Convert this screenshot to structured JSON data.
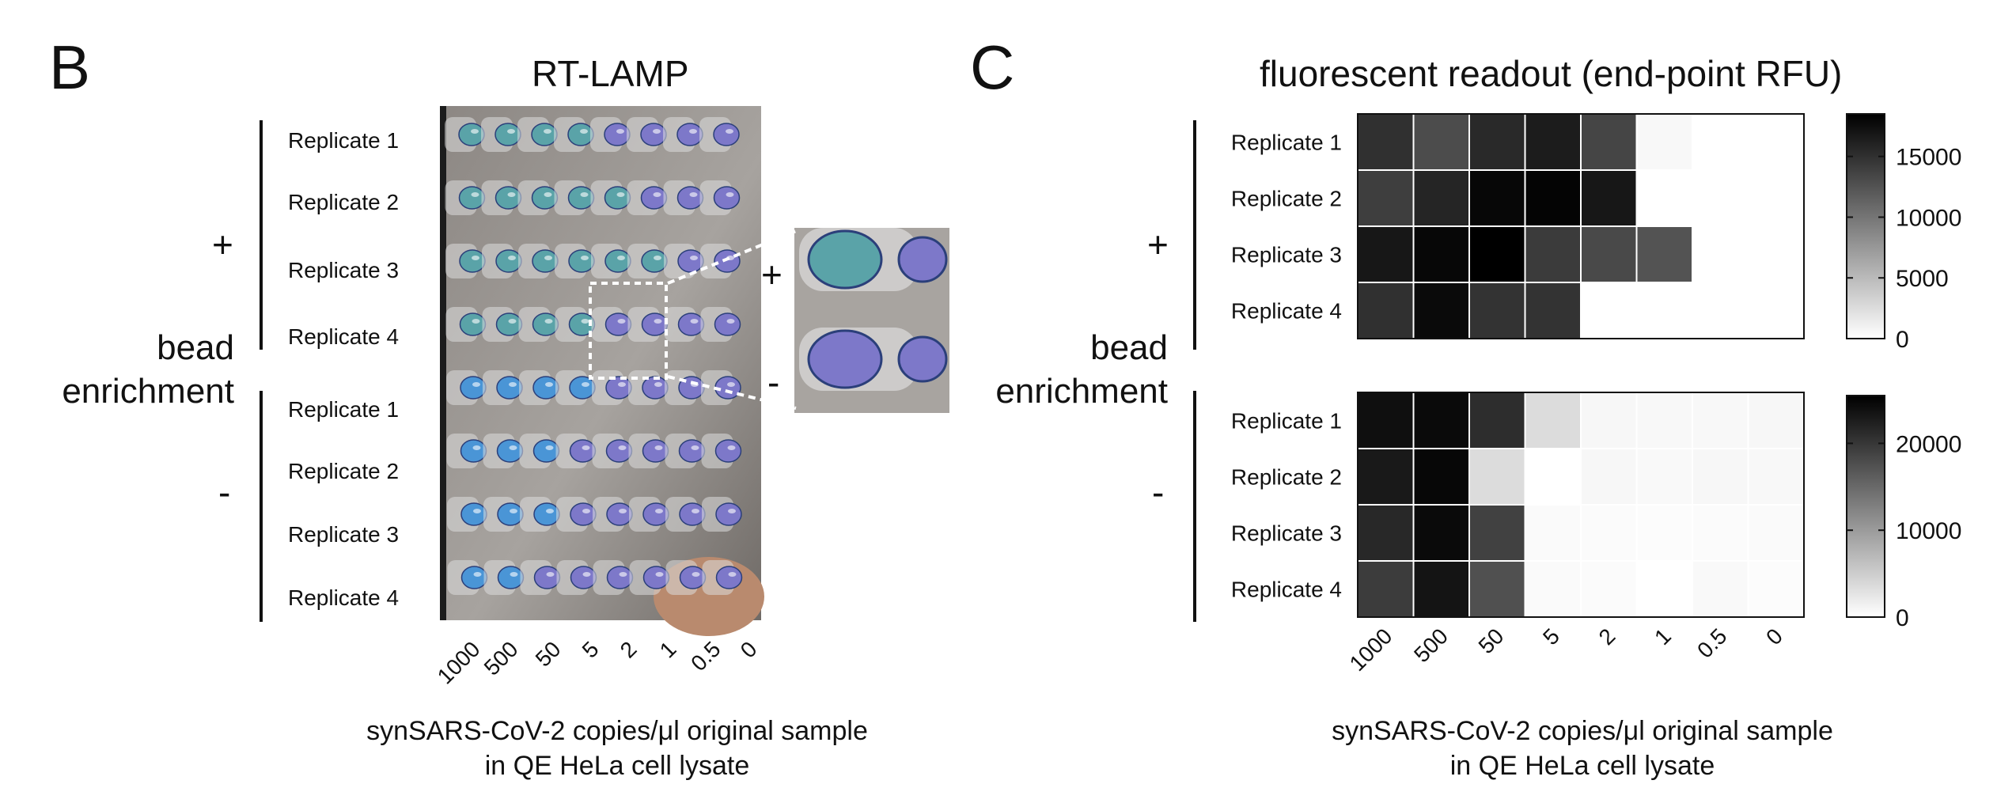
{
  "panel_b": {
    "letter": "B",
    "title": "RT-LAMP",
    "group_label": "bead\nenrichment",
    "plus": "+",
    "minus": "-",
    "replicates_plus": [
      "Replicate 1",
      "Replicate 2",
      "Replicate 3",
      "Replicate 4"
    ],
    "replicates_minus": [
      "Replicate 1",
      "Replicate 2",
      "Replicate 3",
      "Replicate 4"
    ],
    "x_ticks": [
      "1000",
      "500",
      "50",
      "5",
      "2",
      "1",
      "0.5",
      "0"
    ],
    "xlabel_line1": "synSARS-CoV-2 copies/μl original sample",
    "xlabel_line2": "in QE HeLa cell lysate",
    "inset_plus": "+",
    "inset_minus": "-",
    "tube_colors": {
      "blue": "#4a95d6",
      "green_blue": "#5aa3a8",
      "purple": "#7d78c9"
    },
    "tube_rows": [
      [
        "green_blue",
        "green_blue",
        "green_blue",
        "green_blue",
        "purple",
        "purple",
        "purple",
        "purple"
      ],
      [
        "green_blue",
        "green_blue",
        "green_blue",
        "green_blue",
        "green_blue",
        "purple",
        "purple",
        "purple"
      ],
      [
        "green_blue",
        "green_blue",
        "green_blue",
        "green_blue",
        "green_blue",
        "green_blue",
        "purple",
        "purple"
      ],
      [
        "green_blue",
        "green_blue",
        "green_blue",
        "green_blue",
        "purple",
        "purple",
        "purple",
        "purple"
      ],
      [
        "blue",
        "blue",
        "blue",
        "blue",
        "purple",
        "purple",
        "purple",
        "purple"
      ],
      [
        "blue",
        "blue",
        "blue",
        "purple",
        "purple",
        "purple",
        "purple",
        "purple"
      ],
      [
        "blue",
        "blue",
        "blue",
        "purple",
        "purple",
        "purple",
        "purple",
        "purple"
      ],
      [
        "blue",
        "blue",
        "purple",
        "purple",
        "purple",
        "purple",
        "purple",
        "purple"
      ]
    ]
  },
  "panel_c": {
    "letter": "C",
    "title": "fluorescent readout (end-point RFU)",
    "group_label": "bead\nenrichment",
    "plus": "+",
    "minus": "-",
    "xlabel_line1": "synSARS-CoV-2 copies/μl original sample",
    "xlabel_line2": "in QE HeLa cell lysate"
  },
  "chart_data": [
    {
      "type": "heatmap",
      "name": "+",
      "categories": [
        "1000",
        "500",
        "50",
        "5",
        "2",
        "1",
        "0.5",
        "0"
      ],
      "rows": [
        "Replicate 1",
        "Replicate 2",
        "Replicate 3",
        "Replicate 4"
      ],
      "values": [
        [
          15000,
          13000,
          15500,
          16500,
          13500,
          500,
          0,
          0
        ],
        [
          14000,
          15800,
          18000,
          18200,
          16800,
          0,
          0,
          0
        ],
        [
          16800,
          18000,
          18500,
          14200,
          13200,
          12500,
          0,
          0
        ],
        [
          15000,
          17800,
          14800,
          14800,
          0,
          0,
          0,
          0
        ]
      ],
      "colorbar_ticks": [
        0,
        5000,
        10000,
        15000
      ],
      "colorbar_range": [
        0,
        18500
      ],
      "colormap": "white-to-black"
    },
    {
      "type": "heatmap",
      "name": "-",
      "categories": [
        "1000",
        "500",
        "50",
        "5",
        "2",
        "1",
        "0.5",
        "0"
      ],
      "rows": [
        "Replicate 1",
        "Replicate 2",
        "Replicate 3",
        "Replicate 4"
      ],
      "values": [
        [
          24000,
          24500,
          21000,
          3500,
          800,
          700,
          700,
          800
        ],
        [
          23000,
          24800,
          3500,
          0,
          800,
          600,
          800,
          700
        ],
        [
          21500,
          24500,
          19000,
          500,
          400,
          300,
          400,
          500
        ],
        [
          19500,
          23500,
          17500,
          500,
          400,
          0,
          600,
          300
        ]
      ],
      "colorbar_ticks": [
        0,
        10000,
        20000
      ],
      "colorbar_range": [
        0,
        25500
      ],
      "colormap": "white-to-black"
    }
  ]
}
